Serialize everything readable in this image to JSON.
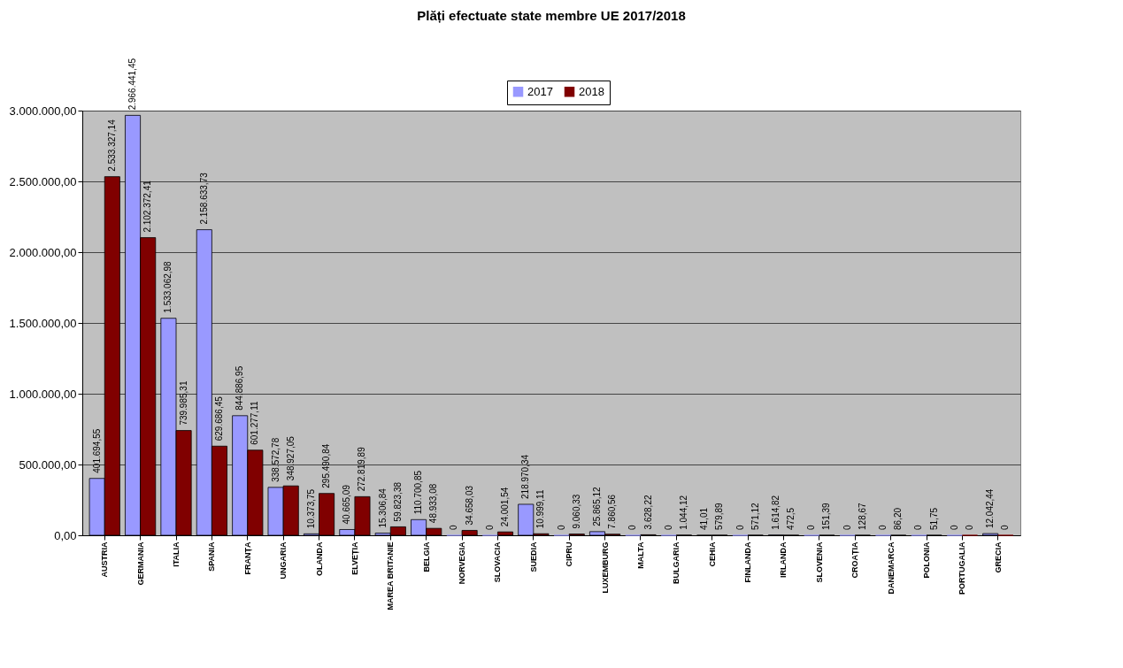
{
  "chart_data": {
    "type": "bar",
    "title": "Plăți efectuate state membre UE 2017/2018",
    "categories": [
      "AUSTRIA",
      "GERMANIA",
      "ITALIA",
      "SPANIA",
      "FRANȚA",
      "UNGARIA",
      "OLANDA",
      "ELVEȚIA",
      "MAREA BRITANIE",
      "BELGIA",
      "NORVEGIA",
      "SLOVACIA",
      "SUEDIA",
      "CIPRU",
      "LUXEMBURG",
      "MALTA",
      "BULGARIA",
      "CEHIA",
      "FINLANDA",
      "IRLANDA",
      "SLOVENIA",
      "CROAȚIA",
      "DANEMARCA",
      "POLONIA",
      "PORTUGALIA",
      "GRECIA"
    ],
    "series": [
      {
        "name": "2017",
        "color": "#9999ff",
        "values": [
          401694.55,
          2966441.45,
          1533062.98,
          2158633.73,
          844886.95,
          338572.78,
          10373.75,
          40665.09,
          15306.84,
          110700.85,
          0,
          0,
          218970.34,
          0,
          25865.12,
          0,
          0,
          41.01,
          0,
          1614.82,
          0,
          0,
          0,
          0,
          0,
          12042.44
        ],
        "value_labels": [
          "401.694,55",
          "2.966.441,45",
          "1.533.062,98",
          "2.158.633,73",
          "844.886,95",
          "338.572,78",
          "10.373,75",
          "40.665,09",
          "15.306,84",
          "110.700,85",
          "0",
          "0",
          "218.970,34",
          "0",
          "25.865,12",
          "0",
          "0",
          "41,01",
          "0",
          "1.614,82",
          "0",
          "0",
          "0",
          "0",
          "0",
          "12.042,44"
        ]
      },
      {
        "name": "2018",
        "color": "#800000",
        "values": [
          2533327.14,
          2102372.41,
          739985.31,
          629686.45,
          601277.11,
          348927.05,
          295490.84,
          272819.89,
          59823.38,
          48933.08,
          34658.03,
          24001.54,
          10999.11,
          9060.33,
          7860.56,
          3628.22,
          1044.12,
          579.89,
          571.12,
          472.5,
          151.39,
          128.67,
          86.2,
          51.75,
          0,
          0
        ],
        "value_labels": [
          "2.533.327,14",
          "2.102.372,41",
          "739.985,31",
          "629.686,45",
          "601.277,11",
          "348.927,05",
          "295.490,84",
          "272.819,89",
          "59.823,38",
          "48.933,08",
          "34.658,03",
          "24.001,54",
          "10.999,11",
          "9.060,33",
          "7.860,56",
          "3.628,22",
          "1.044,12",
          "579,89",
          "571,12",
          "472,5",
          "151,39",
          "128,67",
          "86,20",
          "51,75",
          "0",
          "0"
        ]
      }
    ],
    "ylim": [
      0,
      3000000
    ],
    "yticks": [
      {
        "value": 0,
        "label": "0,00"
      },
      {
        "value": 500000,
        "label": "500.000,00"
      },
      {
        "value": 1000000,
        "label": "1.000.000,00"
      },
      {
        "value": 1500000,
        "label": "1.500.000,00"
      },
      {
        "value": 2000000,
        "label": "2.000.000,00"
      },
      {
        "value": 2500000,
        "label": "2.500.000,00"
      },
      {
        "value": 3000000,
        "label": "3.000.000,00"
      }
    ],
    "grid": "y",
    "legend": "top"
  }
}
